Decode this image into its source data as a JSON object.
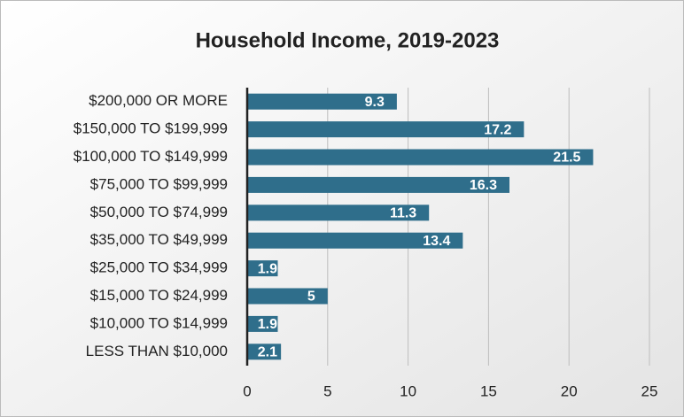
{
  "chart_data": {
    "type": "bar",
    "orientation": "horizontal",
    "title": "Household Income, 2019-2023",
    "categories": [
      "$200,000 OR MORE",
      "$150,000 TO $199,999",
      "$100,000 TO $149,999",
      "$75,000 TO $99,999",
      "$50,000 TO $74,999",
      "$35,000 TO $49,999",
      "$25,000 TO $34,999",
      "$15,000 TO $24,999",
      "$10,000 TO $14,999",
      "LESS THAN $10,000"
    ],
    "values": [
      9.3,
      17.2,
      21.5,
      16.3,
      11.3,
      13.4,
      1.9,
      5,
      1.9,
      2.1
    ],
    "color": "#2f6e8b",
    "xlim": [
      0,
      25
    ],
    "xticks": [
      0,
      5,
      10,
      15,
      20,
      25
    ],
    "grid": true
  }
}
